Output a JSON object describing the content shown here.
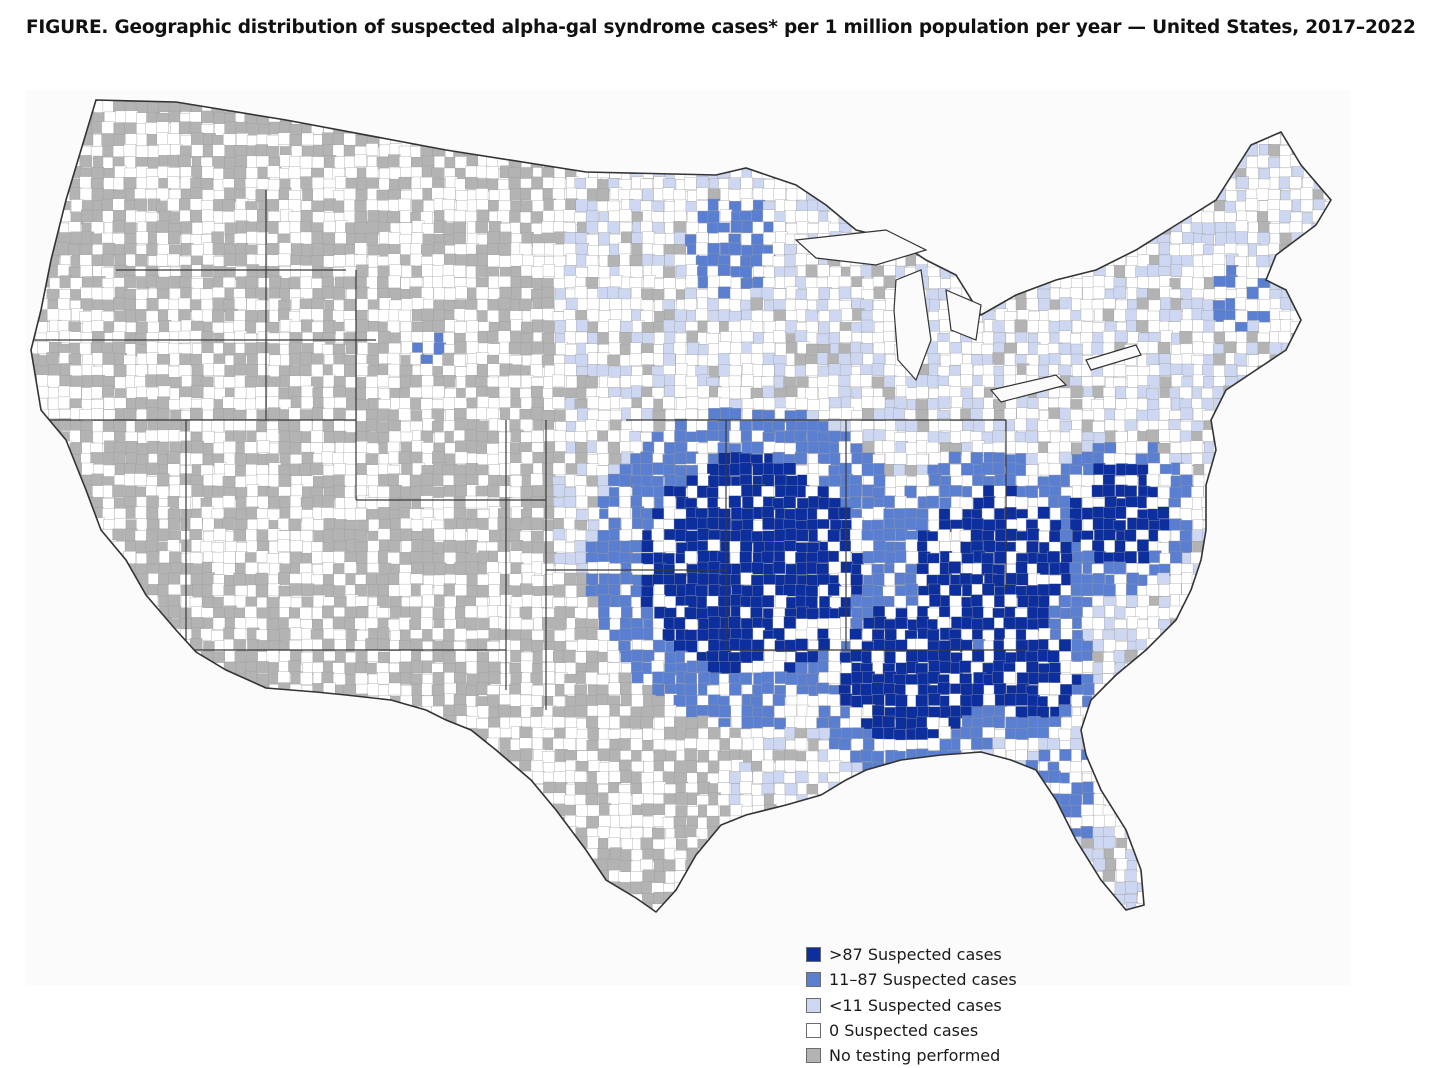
{
  "figure": {
    "title_lead": "FIGURE",
    "title_rest": ". Geographic distribution of suspected alpha-gal syndrome cases* per 1 million population per year — United States, 2017–2022"
  },
  "legend": [
    {
      "label": ">87 Suspected cases",
      "color": "#0d2f9e"
    },
    {
      "label": "11–87 Suspected cases",
      "color": "#5b7fd0"
    },
    {
      "label": "<11 Suspected cases",
      "color": "#cdd7f2"
    },
    {
      "label": "0 Suspected cases",
      "color": "#ffffff"
    },
    {
      "label": "No testing performed",
      "color": "#b3b3b3"
    }
  ],
  "colors": {
    "high": "#0d2f9e",
    "mid": "#5b7fd0",
    "low": "#cdd7f2",
    "zero": "#ffffff",
    "untested": "#b3b3b3",
    "border": "#555555"
  }
}
